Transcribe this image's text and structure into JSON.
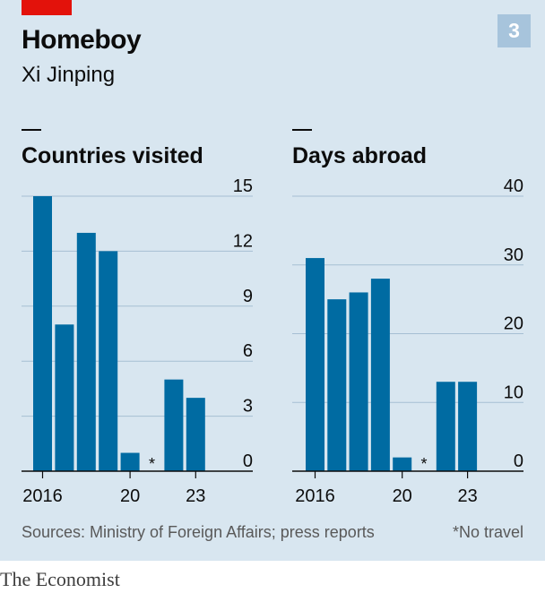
{
  "title": "Homeboy",
  "subtitle": "Xi Jinping",
  "badge": "3",
  "source": "Sources: Ministry of Foreign Affairs; press reports",
  "note": "*No travel",
  "brand": "The Economist",
  "colors": {
    "bar": "#006ba2",
    "background": "#d8e6f0",
    "accent": "#e3120b",
    "badge": "#a7c4dc"
  },
  "chart_data": [
    {
      "type": "bar",
      "title": "Countries visited",
      "categories": [
        "2016",
        "2017",
        "2018",
        "2019",
        "2020",
        "2021",
        "2022",
        "2023"
      ],
      "x_tick_labels": [
        "2016",
        "20",
        "23"
      ],
      "values": [
        15,
        8,
        13,
        12,
        1,
        0,
        5,
        4
      ],
      "no_travel_marker": "*",
      "no_travel_category": "2021",
      "ylim": [
        0,
        15
      ],
      "yticks": [
        "0",
        "3",
        "6",
        "9",
        "12",
        "15"
      ],
      "grid": true,
      "y_axis_side": "right"
    },
    {
      "type": "bar",
      "title": "Days abroad",
      "categories": [
        "2016",
        "2017",
        "2018",
        "2019",
        "2020",
        "2021",
        "2022",
        "2023"
      ],
      "x_tick_labels": [
        "2016",
        "20",
        "23"
      ],
      "values": [
        31,
        25,
        26,
        28,
        2,
        0,
        13,
        13
      ],
      "no_travel_marker": "*",
      "no_travel_category": "2021",
      "ylim": [
        0,
        40
      ],
      "yticks": [
        "0",
        "10",
        "20",
        "30",
        "40"
      ],
      "grid": true,
      "y_axis_side": "right"
    }
  ]
}
